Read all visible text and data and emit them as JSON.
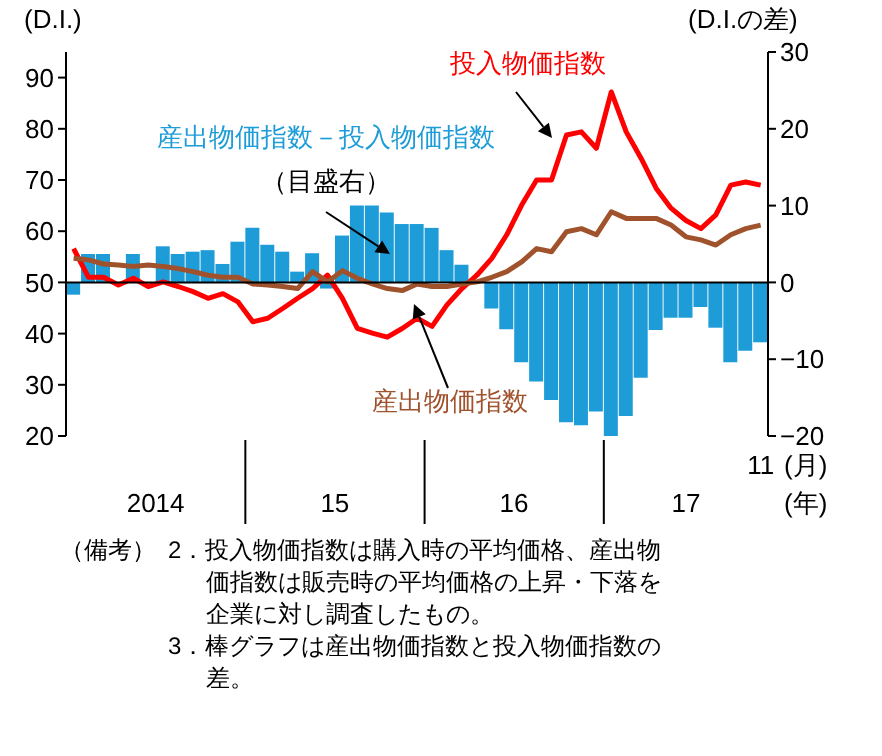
{
  "chart_data": {
    "type": "line",
    "x": [
      "2014-01",
      "2014-02",
      "2014-03",
      "2014-04",
      "2014-05",
      "2014-06",
      "2014-07",
      "2014-08",
      "2014-09",
      "2014-10",
      "2014-11",
      "2014-12",
      "2015-01",
      "2015-02",
      "2015-03",
      "2015-04",
      "2015-05",
      "2015-06",
      "2015-07",
      "2015-08",
      "2015-09",
      "2015-10",
      "2015-11",
      "2015-12",
      "2016-01",
      "2016-02",
      "2016-03",
      "2016-04",
      "2016-05",
      "2016-06",
      "2016-07",
      "2016-08",
      "2016-09",
      "2016-10",
      "2016-11",
      "2016-12",
      "2017-01",
      "2017-02",
      "2017-03",
      "2017-04",
      "2017-05",
      "2017-06",
      "2017-07",
      "2017-08",
      "2017-09",
      "2017-10",
      "2017-11"
    ],
    "xlim": [
      "2013-12-16",
      "2017-11-16"
    ],
    "xticks": [
      {
        "value": "2014-06-16",
        "label": "2014"
      },
      {
        "value": "2015-06-16",
        "label": "15"
      },
      {
        "value": "2016-06-16",
        "label": "16"
      },
      {
        "value": "2017-06",
        "label": "17"
      }
    ],
    "xlabel": "(年)",
    "ylabel": "(D.I.)",
    "y2label": "(D.I.の差)",
    "ylim": [
      20,
      95
    ],
    "yticks": [
      20,
      30,
      40,
      50,
      60,
      70,
      80,
      90
    ],
    "y2lim": [
      -20,
      30
    ],
    "y2ticks": [
      {
        "value": -20,
        "label": "−20"
      },
      {
        "value": -10,
        "label": "−10"
      },
      0,
      10,
      20,
      30
    ],
    "series": [
      {
        "name": "産出物価指数－投入物価指数",
        "type": "bar",
        "axis": "y2",
        "color": "#1e9cd8",
        "values": [
          -1.6,
          3.7,
          3.7,
          null,
          3.7,
          null,
          4.7,
          3.7,
          4.0,
          4.2,
          2.4,
          5.3,
          7.1,
          4.9,
          4.0,
          1.4,
          3.8,
          -0.8,
          6.1,
          10.0,
          10.0,
          9.1,
          7.6,
          7.6,
          7.1,
          4.2,
          2.3,
          0,
          -3.4,
          -6.1,
          -10.4,
          -12.9,
          -15.3,
          -18.2,
          -18.6,
          -16.8,
          -20,
          -17.4,
          -12.4,
          -6.2,
          -4.6,
          -4.6,
          -3.2,
          -5.9,
          -10.4,
          -8.9,
          -7.8
        ]
      },
      {
        "name": "投入物価指数",
        "color": "#ff0000",
        "values": [
          56.6,
          51.0,
          51.0,
          49.5,
          50.8,
          49.2,
          50.1,
          49.2,
          48.2,
          46.9,
          47.8,
          46.2,
          42.3,
          43.0,
          44.9,
          46.9,
          48.8,
          51.4,
          46.9,
          41.0,
          40.1,
          39.3,
          41.0,
          43.0,
          41.4,
          45.6,
          48.8,
          51.4,
          54.7,
          59.3,
          65.1,
          70.0,
          70.0,
          78.8,
          79.4,
          76.2,
          87.2,
          79.4,
          74.2,
          68.4,
          64.5,
          62.1,
          60.5,
          63.2,
          69.0,
          69.6,
          69.0
        ]
      },
      {
        "name": "産出物価指数",
        "color": "#a0522d",
        "values": [
          54.7,
          54.4,
          53.6,
          53.4,
          53.1,
          53.4,
          53.1,
          52.7,
          52.1,
          51.4,
          51.0,
          51.0,
          49.7,
          49.5,
          49.2,
          48.8,
          52.1,
          50.1,
          52.3,
          50.8,
          49.7,
          48.8,
          48.4,
          49.7,
          49.2,
          49.2,
          49.7,
          50.1,
          51.0,
          52.1,
          54.0,
          56.6,
          56.0,
          59.9,
          60.5,
          59.3,
          63.8,
          62.5,
          62.5,
          62.5,
          61.2,
          58.9,
          58.3,
          57.3,
          59.3,
          60.5,
          61.2
        ]
      }
    ],
    "ref_lines": [
      {
        "axis": "y2",
        "value": 0,
        "color": "#000000"
      }
    ],
    "annotations": [
      "（目盛右）",
      "11",
      "(月)",
      "（備考）",
      "2．投入物価指数は購入時の平均価格、産出物価指数は販売時の平均価格の上昇・下落を企業に対し調査したもの。",
      "3．棒グラフは産出物価指数と投入物価指数の差。"
    ],
    "legend": false,
    "grid": false,
    "marker": "none",
    "line_style": "solid"
  }
}
